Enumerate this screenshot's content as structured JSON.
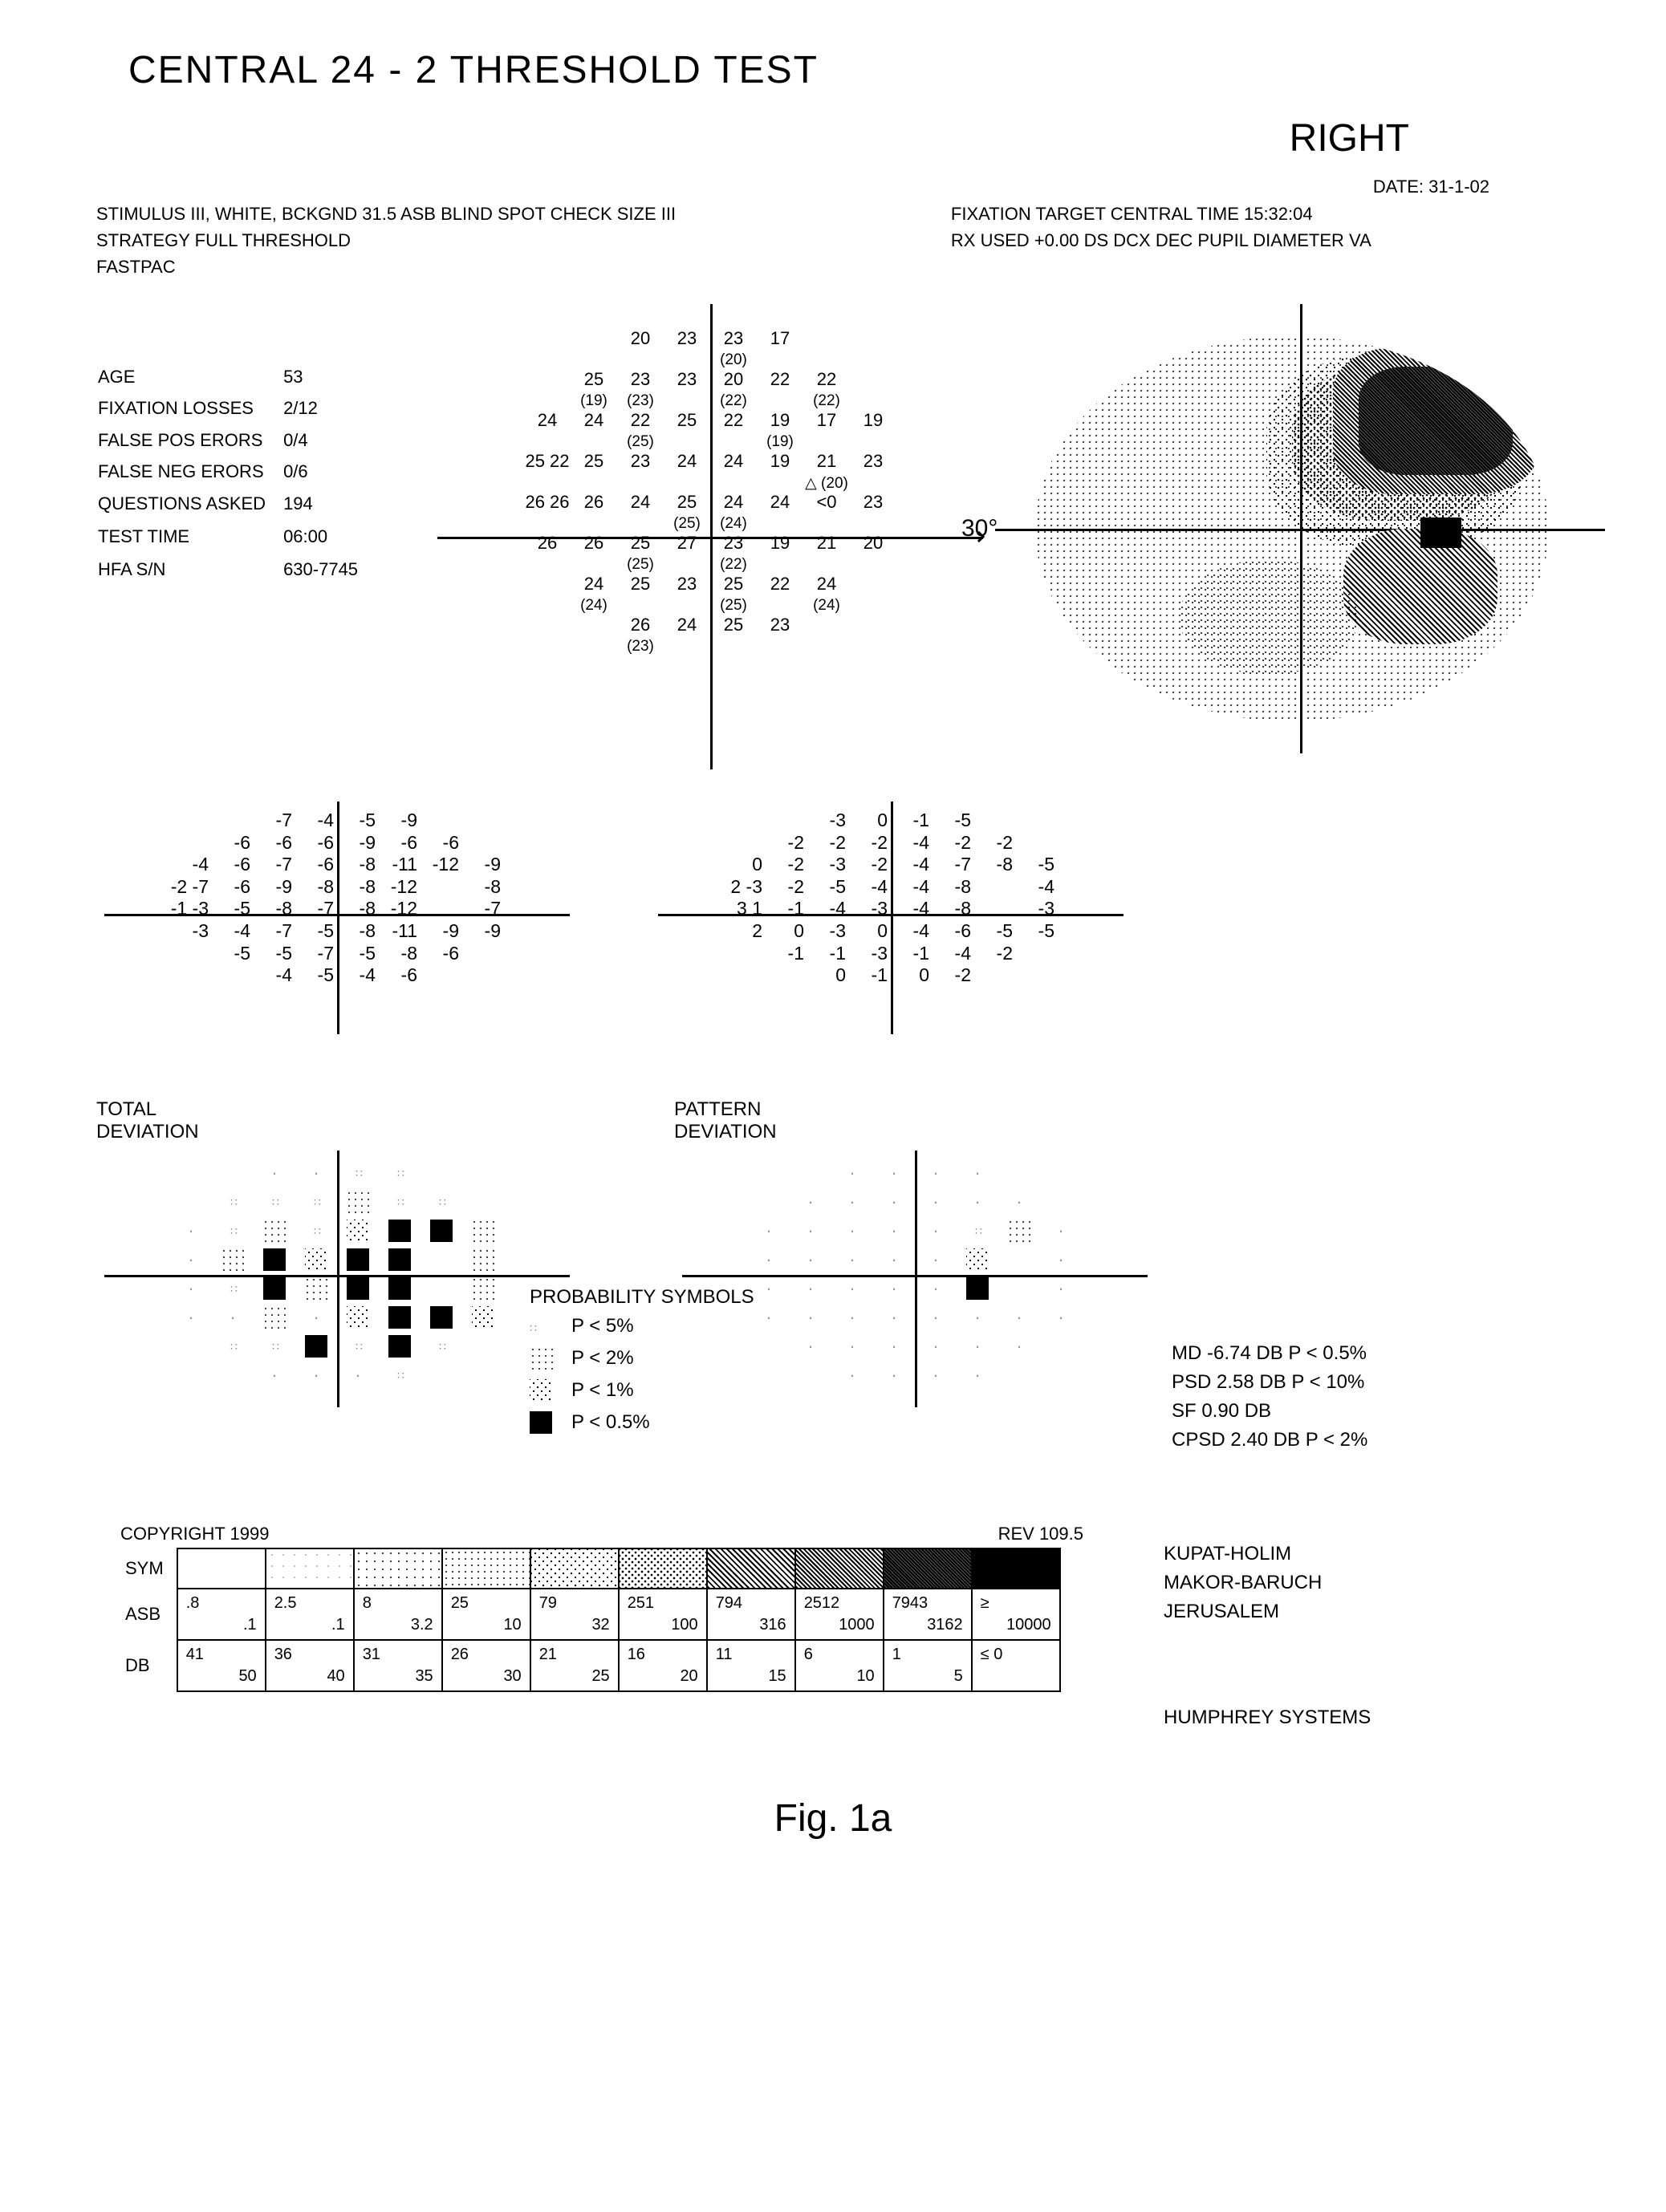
{
  "title": "CENTRAL 24  -  2 THRESHOLD TEST",
  "eye": "RIGHT",
  "date": "DATE:  31-1-02",
  "hdr": {
    "l1": "STIMULUS III, WHITE, BCKGND 31.5 ASB BLIND SPOT CHECK SIZE III",
    "l2": "STRATEGY  FULL THRESHOLD",
    "l3": "FASTPAC",
    "r1": "FIXATION TARGET   CENTRAL              TIME 15:32:04",
    "r2": "RX USED +0.00 DS    DCX         DEC      PUPIL DIAMETER    VA"
  },
  "patient": {
    "rows": [
      [
        "AGE",
        "53"
      ],
      [
        "FIXATION  LOSSES",
        "2/12"
      ],
      [
        "FALSE POS ERORS",
        "0/4"
      ],
      [
        "FALSE NEG ERORS",
        "0/6"
      ],
      [
        "QUESTIONS ASKED",
        "194"
      ],
      [
        "",
        ""
      ],
      [
        "TEST TIME",
        "06:00"
      ],
      [
        "",
        ""
      ],
      [
        "HFA S/N",
        "630-7745"
      ]
    ]
  },
  "axis30": "30°",
  "threshold": {
    "rows": [
      [
        [
          "",
          "",
          "20",
          "23",
          "23",
          "17",
          "",
          ""
        ],
        [
          "",
          "",
          "",
          "",
          "(20)",
          "",
          "",
          ""
        ]
      ],
      [
        [
          "",
          "25",
          "23",
          "23",
          "20",
          "22",
          "22",
          ""
        ],
        [
          "",
          "(19)",
          "(23)",
          "",
          "(22)",
          "",
          "(22)",
          ""
        ]
      ],
      [
        [
          "24",
          "24",
          "22",
          "25",
          "22",
          "19",
          "17",
          "19"
        ],
        [
          "",
          "",
          "(25)",
          "",
          "",
          "(19)",
          "",
          ""
        ]
      ],
      [
        [
          "25    22",
          "25",
          "23",
          "24",
          "24",
          "19",
          "21",
          "23"
        ],
        [
          "",
          "",
          "",
          "",
          "",
          "",
          "△ (20)",
          ""
        ]
      ],
      [
        [
          "26    26",
          "26",
          "24",
          "25",
          "24",
          "24",
          "<0",
          "23"
        ],
        [
          "",
          "",
          "",
          "(25)",
          "(24)",
          "",
          "",
          ""
        ]
      ],
      [
        [
          "26",
          "26",
          "25",
          "27",
          "23",
          "19",
          "21",
          "20"
        ],
        [
          "",
          "",
          "(25)",
          "",
          "(22)",
          "",
          "",
          ""
        ]
      ],
      [
        [
          "",
          "24",
          "25",
          "23",
          "25",
          "22",
          "24",
          ""
        ],
        [
          "",
          "(24)",
          "",
          "",
          "(25)",
          "",
          "(24)",
          ""
        ]
      ],
      [
        [
          "",
          "",
          "26",
          "24",
          "25",
          "23",
          "",
          ""
        ],
        [
          "",
          "",
          "(23)",
          "",
          "",
          "",
          "",
          ""
        ]
      ]
    ]
  },
  "totdev": {
    "rows": [
      [
        "",
        "",
        "-7",
        "-4",
        "-5",
        "-9",
        "",
        ""
      ],
      [
        "",
        "-6",
        "-6",
        "-6",
        "-9",
        "-6",
        "-6",
        ""
      ],
      [
        "-4",
        "-6",
        "-7",
        "-6",
        "-8",
        "-11",
        "-12",
        "-9"
      ],
      [
        "-2  -7",
        "-6",
        "-9",
        "-8",
        "-8",
        "-12",
        "",
        "-8"
      ],
      [
        "-1  -3",
        "-5",
        "-8",
        "-7",
        "-8",
        "-12",
        "",
        "-7"
      ],
      [
        "-3",
        "-4",
        "-7",
        "-5",
        "-8",
        "-11",
        "-9",
        "-9"
      ],
      [
        "",
        "-5",
        "-5",
        "-7",
        "-5",
        "-8",
        "-6",
        ""
      ],
      [
        "",
        "",
        "-4",
        "-5",
        "-4",
        "-6",
        "",
        ""
      ]
    ],
    "label": "TOTAL\nDEVIATION"
  },
  "patdev": {
    "rows": [
      [
        "",
        "",
        "-3",
        "0",
        "-1",
        "-5",
        "",
        ""
      ],
      [
        "",
        "-2",
        "-2",
        "-2",
        "-4",
        "-2",
        "-2",
        ""
      ],
      [
        "0",
        "-2",
        "-3",
        "-2",
        "-4",
        "-7",
        "-8",
        "-5"
      ],
      [
        "2  -3",
        "-2",
        "-5",
        "-4",
        "-4",
        "-8",
        "",
        "-4"
      ],
      [
        "3   1",
        "-1",
        "-4",
        "-3",
        "-4",
        "-8",
        "",
        "-3"
      ],
      [
        "2",
        "0",
        "-3",
        "0",
        "-4",
        "-6",
        "-5",
        "-5"
      ],
      [
        "",
        "-1",
        "-1",
        "-3",
        "-1",
        "-4",
        "-2",
        ""
      ],
      [
        "",
        "",
        "0",
        "-1",
        "0",
        "-2",
        "",
        ""
      ]
    ],
    "label": "PATTERN\nDEVIATION"
  },
  "totsym": [
    [
      "",
      "",
      ".",
      ".",
      1,
      1,
      "",
      ""
    ],
    [
      "",
      1,
      1,
      1,
      2,
      1,
      1,
      ""
    ],
    [
      ".",
      1,
      2,
      1,
      3,
      4,
      4,
      2
    ],
    [
      ".",
      2,
      4,
      3,
      4,
      4,
      "",
      2
    ],
    [
      ".",
      1,
      4,
      2,
      4,
      4,
      "",
      2
    ],
    [
      ".",
      ".",
      2,
      ".",
      3,
      4,
      4,
      3
    ],
    [
      "",
      1,
      1,
      4,
      1,
      4,
      1,
      ""
    ],
    [
      "",
      "",
      ".",
      ".",
      ".",
      1,
      "",
      ""
    ]
  ],
  "patsym": [
    [
      "",
      "",
      ".",
      ".",
      ".",
      ".",
      "",
      ""
    ],
    [
      "",
      ".",
      ".",
      ".",
      ".",
      ".",
      ".",
      ""
    ],
    [
      ".",
      ".",
      ".",
      ".",
      ".",
      1,
      2,
      "."
    ],
    [
      ".",
      ".",
      ".",
      ".",
      ".",
      3,
      "",
      "."
    ],
    [
      ".",
      ".",
      ".",
      ".",
      ".",
      4,
      "",
      "."
    ],
    [
      ".",
      ".",
      ".",
      ".",
      ".",
      ".",
      ".",
      "."
    ],
    [
      "",
      ".",
      ".",
      ".",
      ".",
      ".",
      ".",
      ""
    ],
    [
      "",
      "",
      ".",
      ".",
      ".",
      ".",
      "",
      ""
    ]
  ],
  "problegend": {
    "title": "PROBABILITY SYMBOLS",
    "rows": [
      {
        "sym": 1,
        "txt": "P <   5%"
      },
      {
        "sym": 2,
        "txt": "P <   2%"
      },
      {
        "sym": 3,
        "txt": "P <   1%"
      },
      {
        "sym": 4,
        "txt": "P <  0.5%"
      }
    ]
  },
  "global": [
    "MD      -6.74 DB P  < 0.5%",
    "PSD     2.58 DB P  < 10%",
    "SF       0.90 DB",
    "CPSD  2.40 DB P  <  2%"
  ],
  "legendtbl": {
    "copyright": "COPYRIGHT 1999",
    "rev": "REV 109.5",
    "rows": {
      "sym": "SYM",
      "asb": "ASB",
      "db": "DB"
    },
    "asb": [
      [
        ".8",
        ".1"
      ],
      [
        "2.5",
        ".1"
      ],
      [
        "8",
        "3.2"
      ],
      [
        "25",
        "10"
      ],
      [
        "79",
        "32"
      ],
      [
        "251",
        "100"
      ],
      [
        "794",
        "316"
      ],
      [
        "2512",
        "1000"
      ],
      [
        "7943",
        "3162"
      ],
      [
        "≥",
        "10000"
      ]
    ],
    "db": [
      [
        "41",
        "50"
      ],
      [
        "36",
        "40"
      ],
      [
        "31",
        "35"
      ],
      [
        "26",
        "30"
      ],
      [
        "21",
        "25"
      ],
      [
        "16",
        "20"
      ],
      [
        "11",
        "15"
      ],
      [
        "6",
        "10"
      ],
      [
        "1",
        "5"
      ],
      [
        "≤ 0",
        ""
      ]
    ]
  },
  "inst": [
    "KUPAT-HOLIM",
    "MAKOR-BARUCH",
    "JERUSALEM",
    "",
    "HUMPHREY SYSTEMS"
  ],
  "fig": "Fig. 1a"
}
